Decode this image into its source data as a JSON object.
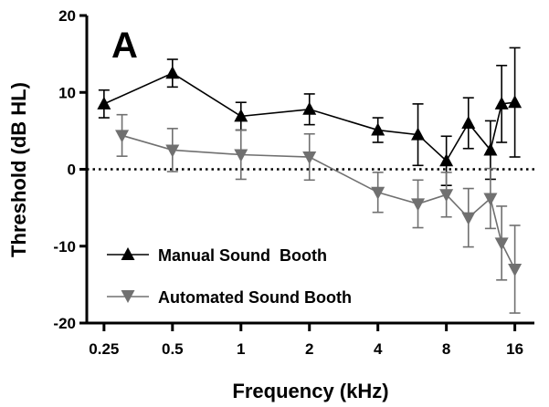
{
  "chart_data": {
    "type": "line",
    "panel_label": "A",
    "xlabel": "Frequency (kHz)",
    "ylabel": "Threshold (dB HL)",
    "x_scale": "log2",
    "xlim": [
      0.21,
      19.5
    ],
    "ylim": [
      -20,
      20
    ],
    "x_ticks": [
      0.25,
      0.5,
      1,
      2,
      4,
      8,
      16
    ],
    "x_tick_labels": [
      "0.25",
      "0.5",
      "1",
      "2",
      "4",
      "8",
      "16"
    ],
    "y_ticks": [
      -20,
      -10,
      0,
      10,
      20
    ],
    "y_tick_labels": [
      "-20",
      "-10",
      "0",
      "10",
      "20"
    ],
    "reference_line": {
      "y": 0,
      "style": "dotted"
    },
    "legend_position": "bottom-left",
    "series": [
      {
        "name": "Manual Sound  Booth",
        "marker": "triangle-up",
        "color": "#000000",
        "points": [
          {
            "x": 0.25,
            "y": 8.5,
            "err": 1.8
          },
          {
            "x": 0.5,
            "y": 12.5,
            "err": 1.8
          },
          {
            "x": 1,
            "y": 6.9,
            "err": 1.8
          },
          {
            "x": 2,
            "y": 7.8,
            "err": 2.0
          },
          {
            "x": 4,
            "y": 5.1,
            "err": 1.6
          },
          {
            "x": 6,
            "y": 4.5,
            "err": 4.0
          },
          {
            "x": 8,
            "y": 1.1,
            "err": 3.2
          },
          {
            "x": 10,
            "y": 6.0,
            "err": 3.3
          },
          {
            "x": 12.5,
            "y": 2.5,
            "err": 3.8
          },
          {
            "x": 14,
            "y": 8.5,
            "err": 5.0
          },
          {
            "x": 16,
            "y": 8.7,
            "err": 7.1
          }
        ]
      },
      {
        "name": "Automated Sound Booth",
        "marker": "triangle-down",
        "color": "#707070",
        "points": [
          {
            "x": 0.3,
            "y": 4.4,
            "err": 2.7
          },
          {
            "x": 0.5,
            "y": 2.5,
            "err": 2.8
          },
          {
            "x": 1,
            "y": 1.9,
            "err": 3.2
          },
          {
            "x": 2,
            "y": 1.6,
            "err": 3.0
          },
          {
            "x": 4,
            "y": -3.0,
            "err": 2.6
          },
          {
            "x": 6,
            "y": -4.5,
            "err": 3.1
          },
          {
            "x": 8,
            "y": -3.3,
            "err": 2.9
          },
          {
            "x": 10,
            "y": -6.3,
            "err": 3.8
          },
          {
            "x": 12.5,
            "y": -3.8,
            "err": 3.9
          },
          {
            "x": 14,
            "y": -9.6,
            "err": 4.8
          },
          {
            "x": 16,
            "y": -13.0,
            "err": 5.7
          }
        ]
      }
    ]
  }
}
